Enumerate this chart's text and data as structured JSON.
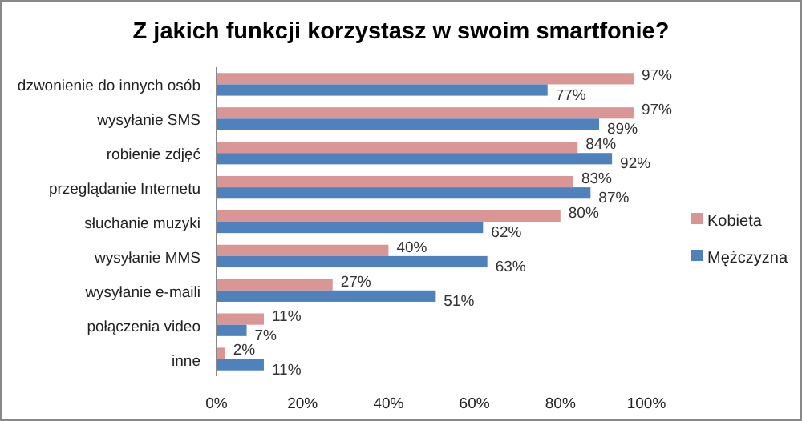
{
  "chart_data": {
    "type": "bar",
    "orientation": "horizontal",
    "title": "Z jakich funkcji korzystasz w swoim smartfonie?",
    "categories": [
      "dzwonienie do innych osób",
      "wysyłanie SMS",
      "robienie zdjęć",
      "przeglądanie Internetu",
      "słuchanie muzyki",
      "wysyłanie MMS",
      "wysyłanie e-maili",
      "połączenia video",
      "inne"
    ],
    "series": [
      {
        "name": "Kobieta",
        "color": "#d99694",
        "values": [
          97,
          97,
          84,
          83,
          80,
          40,
          27,
          11,
          2
        ],
        "value_labels": [
          "97%",
          "97%",
          "84%",
          "83%",
          "80%",
          "40%",
          "27%",
          "11%",
          "2%"
        ]
      },
      {
        "name": "Mężczyzna",
        "color": "#4f81bd",
        "values": [
          77,
          89,
          92,
          87,
          62,
          63,
          51,
          7,
          11
        ],
        "value_labels": [
          "77%",
          "89%",
          "92%",
          "87%",
          "62%",
          "63%",
          "51%",
          "7%",
          "11%"
        ]
      }
    ],
    "xlim": [
      0,
      100
    ],
    "xticks": [
      {
        "value": 0,
        "label": "0%"
      },
      {
        "value": 20,
        "label": "20%"
      },
      {
        "value": 40,
        "label": "40%"
      },
      {
        "value": 60,
        "label": "60%"
      },
      {
        "value": 80,
        "label": "80%"
      },
      {
        "value": 100,
        "label": "100%"
      }
    ],
    "grid": false,
    "legend": "right"
  }
}
